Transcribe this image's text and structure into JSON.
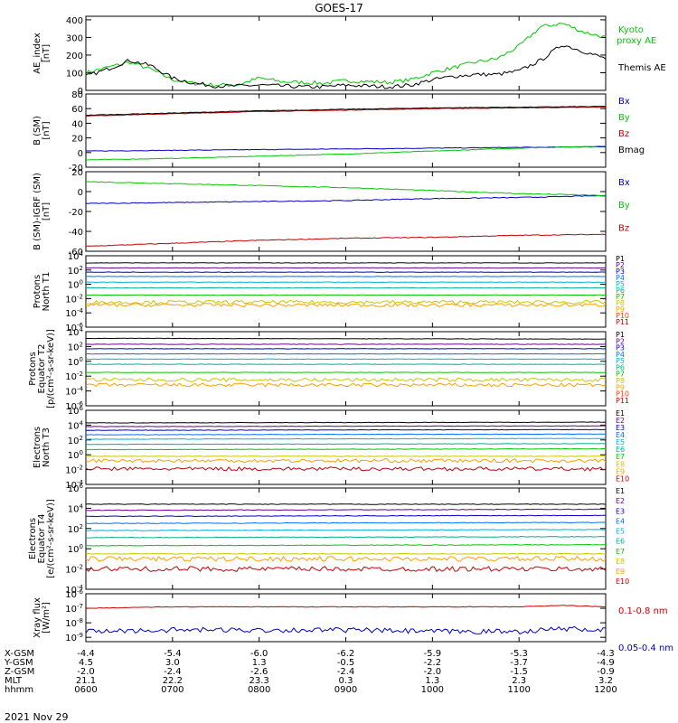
{
  "title": "GOES-17",
  "date_label": "2021 Nov 29",
  "colors": {
    "green": "#00c800",
    "black": "#000000",
    "blue": "#0000c8",
    "red": "#c80000",
    "P1": "#000000",
    "P2": "#6a0090",
    "P3": "#0000c8",
    "P4": "#0070ff",
    "P5": "#00b0e0",
    "P6": "#00b090",
    "P7": "#00c800",
    "P8": "#c8c800",
    "P9": "#ffa000",
    "P10": "#ff4000",
    "P11": "#c80000"
  },
  "ephemeris": {
    "row_labels": [
      "X-GSM",
      "Y-GSM",
      "Z-GSM",
      "MLT",
      "hhmm"
    ],
    "columns": [
      [
        "-4.4",
        "4.5",
        "-2.0",
        "21.1",
        "0600"
      ],
      [
        "-5.4",
        "3.0",
        "-2.4",
        "22.2",
        "0700"
      ],
      [
        "-6.0",
        "1.3",
        "-2.6",
        "23.3",
        "0800"
      ],
      [
        "-6.2",
        "-0.5",
        "-2.4",
        "0.3",
        "0900"
      ],
      [
        "-5.9",
        "-2.2",
        "-2.0",
        "1.3",
        "1000"
      ],
      [
        "-5.3",
        "-3.7",
        "-1.5",
        "2.3",
        "1100"
      ],
      [
        "-4.3",
        "-4.9",
        "-0.9",
        "3.2",
        "1200"
      ]
    ]
  },
  "chart_data": [
    {
      "type": "line",
      "id": "ae",
      "ylabel": "AE_index [nT]",
      "yticks": [
        "0",
        "100",
        "200",
        "300",
        "400"
      ],
      "ylim": [
        0,
        420
      ],
      "x": [
        6.0,
        6.25,
        6.5,
        6.75,
        7.0,
        7.25,
        7.5,
        7.75,
        8.0,
        8.25,
        8.5,
        8.75,
        9.0,
        9.25,
        9.5,
        9.75,
        10.0,
        10.25,
        10.5,
        10.75,
        11.0,
        11.25,
        11.5,
        11.75,
        12.0
      ],
      "series": [
        {
          "name": "Kyoto proxy AE",
          "color": "green",
          "values": [
            100,
            130,
            160,
            120,
            60,
            40,
            30,
            30,
            70,
            50,
            45,
            40,
            55,
            50,
            45,
            60,
            100,
            130,
            160,
            180,
            250,
            360,
            380,
            330,
            300
          ]
        },
        {
          "name": "Themis AE",
          "color": "black",
          "values": [
            80,
            120,
            170,
            140,
            70,
            40,
            25,
            25,
            30,
            25,
            20,
            20,
            30,
            25,
            20,
            30,
            60,
            80,
            90,
            90,
            110,
            170,
            260,
            220,
            180
          ]
        }
      ]
    },
    {
      "type": "line",
      "id": "bsm",
      "ylabel": "B (SM) [nT]",
      "yticks": [
        "-20",
        "0",
        "20",
        "40",
        "60",
        "80"
      ],
      "ylim": [
        -20,
        80
      ],
      "x": [
        6.0,
        7.0,
        8.0,
        9.0,
        10.0,
        11.0,
        12.0
      ],
      "series": [
        {
          "name": "Bx",
          "color": "blue",
          "values": [
            2,
            3,
            4,
            5,
            6,
            7,
            8
          ]
        },
        {
          "name": "By",
          "color": "green",
          "values": [
            -10,
            -8,
            -5,
            -2,
            2,
            6,
            9
          ]
        },
        {
          "name": "Bz",
          "color": "red",
          "values": [
            50,
            53,
            56,
            58,
            60,
            61,
            62
          ]
        },
        {
          "name": "Bmag",
          "color": "black",
          "values": [
            51,
            54,
            57,
            59,
            61,
            62,
            63
          ]
        }
      ]
    },
    {
      "type": "line",
      "id": "bsm_igrf",
      "ylabel": "B (SM)-IGRF (SM) [nT]",
      "yticks": [
        "-60",
        "-40",
        "-20",
        "0",
        "20"
      ],
      "ylim": [
        -60,
        20
      ],
      "x": [
        6.0,
        7.0,
        8.0,
        9.0,
        10.0,
        11.0,
        12.0
      ],
      "series": [
        {
          "name": "Bx",
          "color": "blue",
          "values": [
            -12,
            -11,
            -10,
            -9,
            -7,
            -6,
            -4
          ]
        },
        {
          "name": "By",
          "color": "green",
          "values": [
            10,
            8,
            6,
            4,
            1,
            -2,
            -4
          ]
        },
        {
          "name": "Bz",
          "color": "red",
          "values": [
            -55,
            -52,
            -49,
            -47,
            -46,
            -44,
            -43
          ]
        }
      ]
    },
    {
      "type": "line",
      "id": "protons_t1",
      "ylabel": "Protons North T1",
      "scale": "log",
      "yticks": [
        "10^-6",
        "10^-4",
        "10^-2",
        "10^0",
        "10^2",
        "10^4"
      ],
      "ylim": [
        -6,
        4
      ],
      "x": [
        6.0,
        12.0
      ],
      "series": [
        {
          "name": "P1",
          "color": "P1",
          "values": [
            3.0,
            3.0
          ]
        },
        {
          "name": "P2",
          "color": "P2",
          "values": [
            2.3,
            2.3
          ]
        },
        {
          "name": "P3",
          "color": "P3",
          "values": [
            1.7,
            1.7
          ]
        },
        {
          "name": "P4",
          "color": "P4",
          "values": [
            1.1,
            1.1
          ]
        },
        {
          "name": "P5",
          "color": "P5",
          "values": [
            0.3,
            0.3
          ]
        },
        {
          "name": "P6",
          "color": "P6",
          "values": [
            -0.5,
            -0.5
          ]
        },
        {
          "name": "P7",
          "color": "P7",
          "values": [
            -1.5,
            -1.5
          ]
        },
        {
          "name": "P8",
          "color": "P8",
          "values": [
            -2.5,
            -2.5
          ]
        },
        {
          "name": "P9",
          "color": "P9",
          "values": [
            -2.9,
            -2.9
          ]
        }
      ],
      "legend": [
        "P1",
        "P2",
        "P3",
        "P4",
        "P5",
        "P6",
        "P7",
        "P8",
        "P9",
        "P10",
        "P11"
      ]
    },
    {
      "type": "line",
      "id": "protons_t2",
      "ylabel": "Protons Equator T2 [p/(cm²-s-sr-keV)]",
      "scale": "log",
      "yticks": [
        "10^-6",
        "10^-4",
        "10^-2",
        "10^0",
        "10^2",
        "10^4"
      ],
      "ylim": [
        -6,
        4
      ],
      "x": [
        6.0,
        12.0
      ],
      "series": [
        {
          "name": "P1",
          "color": "P1",
          "values": [
            3.1,
            3.0
          ]
        },
        {
          "name": "P2",
          "color": "P2",
          "values": [
            2.3,
            2.3
          ]
        },
        {
          "name": "P3",
          "color": "P3",
          "values": [
            1.7,
            1.7
          ]
        },
        {
          "name": "P4",
          "color": "P4",
          "values": [
            1.0,
            1.0
          ]
        },
        {
          "name": "P5",
          "color": "P5",
          "values": [
            0.3,
            0.3
          ]
        },
        {
          "name": "P6",
          "color": "P6",
          "values": [
            -0.4,
            -0.4
          ]
        },
        {
          "name": "P7",
          "color": "P7",
          "values": [
            -1.5,
            -1.5
          ]
        },
        {
          "name": "P8",
          "color": "P8",
          "values": [
            -2.5,
            -2.5
          ]
        },
        {
          "name": "P9",
          "color": "P9",
          "values": [
            -3.2,
            -3.2
          ]
        }
      ],
      "legend": [
        "P1",
        "P2",
        "P3",
        "P4",
        "P5",
        "P6",
        "P7",
        "P8",
        "P9",
        "P10",
        "P11"
      ]
    },
    {
      "type": "line",
      "id": "electrons_t3",
      "ylabel": "Electrons North T3",
      "scale": "log",
      "yticks": [
        "10^-4",
        "10^-2",
        "10^0",
        "10^2",
        "10^4",
        "10^6"
      ],
      "ylim": [
        -4,
        6
      ],
      "x": [
        6.0,
        12.0
      ],
      "series": [
        {
          "name": "E1",
          "color": "P1",
          "values": [
            4.3,
            4.4
          ]
        },
        {
          "name": "E2",
          "color": "P2",
          "values": [
            3.8,
            3.9
          ]
        },
        {
          "name": "E3",
          "color": "P3",
          "values": [
            3.3,
            3.4
          ]
        },
        {
          "name": "E4",
          "color": "P4",
          "values": [
            2.7,
            2.8
          ]
        },
        {
          "name": "E5",
          "color": "P5",
          "values": [
            2.1,
            2.2
          ]
        },
        {
          "name": "E6",
          "color": "P6",
          "values": [
            1.4,
            1.5
          ]
        },
        {
          "name": "E7",
          "color": "P7",
          "values": [
            0.7,
            0.8
          ]
        },
        {
          "name": "E8",
          "color": "P8",
          "values": [
            -0.2,
            -0.2
          ]
        },
        {
          "name": "E9",
          "color": "P9",
          "values": [
            -0.8,
            -0.8
          ]
        },
        {
          "name": "E10",
          "color": "P11",
          "values": [
            -1.9,
            -1.9
          ]
        }
      ],
      "legend": [
        "E1",
        "E2",
        "E3",
        "E4",
        "E5",
        "E6",
        "E7",
        "E8",
        "E9",
        "E10"
      ]
    },
    {
      "type": "line",
      "id": "electrons_t4",
      "ylabel": "Electrons Equator T4 [e/(cm²-s-sr-keV)]",
      "scale": "log",
      "yticks": [
        "10^-4",
        "10^-2",
        "10^0",
        "10^2",
        "10^4",
        "10^6"
      ],
      "ylim": [
        -4,
        6
      ],
      "x": [
        6.0,
        12.0
      ],
      "series": [
        {
          "name": "E1",
          "color": "P1",
          "values": [
            4.4,
            4.4
          ]
        },
        {
          "name": "E2",
          "color": "P2",
          "values": [
            3.8,
            3.9
          ]
        },
        {
          "name": "E3",
          "color": "P3",
          "values": [
            3.2,
            3.3
          ]
        },
        {
          "name": "E4",
          "color": "P4",
          "values": [
            2.5,
            2.6
          ]
        },
        {
          "name": "E5",
          "color": "P5",
          "values": [
            1.8,
            1.9
          ]
        },
        {
          "name": "E6",
          "color": "P6",
          "values": [
            1.1,
            1.2
          ]
        },
        {
          "name": "E7",
          "color": "P7",
          "values": [
            0.3,
            0.4
          ]
        },
        {
          "name": "E8",
          "color": "P8",
          "values": [
            -0.5,
            -0.5
          ]
        },
        {
          "name": "E9",
          "color": "P9",
          "values": [
            -1.0,
            -1.0
          ]
        },
        {
          "name": "E10",
          "color": "P11",
          "values": [
            -2.0,
            -2.0
          ]
        }
      ],
      "legend": [
        "E1",
        "E2",
        "E3",
        "E4",
        "E5",
        "E6",
        "E7",
        "E8",
        "E9",
        "E10"
      ]
    },
    {
      "type": "line",
      "id": "xray",
      "ylabel": "Xray flux [W/m²]",
      "scale": "log",
      "yticks": [
        "10^-9",
        "10^-8",
        "10^-7",
        "10^-6"
      ],
      "ylim": [
        -9.3,
        -6
      ],
      "x": [
        6.0,
        7.0,
        8.0,
        9.0,
        10.0,
        11.0,
        11.5,
        12.0
      ],
      "series": [
        {
          "name": "0.1-0.8 nm",
          "color": "red",
          "values": [
            -7.0,
            -6.9,
            -6.9,
            -6.9,
            -6.9,
            -6.9,
            -6.8,
            -6.9
          ]
        },
        {
          "name": "0.05-0.4 nm",
          "color": "blue",
          "values": [
            -8.6,
            -8.5,
            -8.5,
            -8.5,
            -8.6,
            -8.6,
            -8.4,
            -8.5
          ]
        }
      ]
    }
  ]
}
